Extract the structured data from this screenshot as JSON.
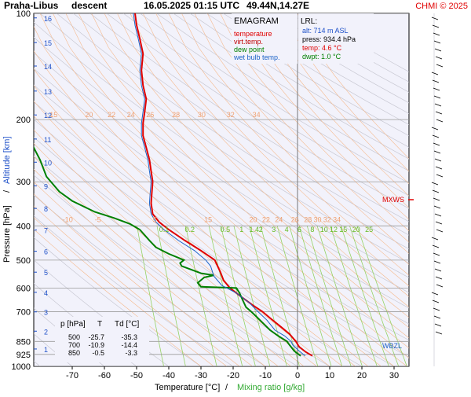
{
  "header": {
    "station": "Praha-Libus",
    "kind": "descent",
    "datetime": "16.05.2025 01:15 UTC",
    "coords": "49.44N,14.27E",
    "copyright": "CHMI © 2025"
  },
  "legend": {
    "title": "EMAGRAM",
    "items": [
      {
        "label": "temperature",
        "color": "#e00000"
      },
      {
        "label": "virt.temp.",
        "color": "#c00000"
      },
      {
        "label": "dew point",
        "color": "#008000"
      },
      {
        "label": "wet bulb temp.",
        "color": "#1e64c8"
      }
    ]
  },
  "lrl": {
    "title": "LRL:",
    "alt": "alt: 714 m ASL",
    "press": "press: 934.4 hPa",
    "temp": "temp: 4.6 °C",
    "dwpt": "dwpt: 1.0 °C"
  },
  "table": {
    "headers": [
      "p [hPa]",
      "T",
      "Td [°C]"
    ],
    "rows": [
      [
        "500",
        "-25.7",
        "-35.3"
      ],
      [
        "700",
        "-10.9",
        "-14.4"
      ],
      [
        "850",
        "-0.5",
        "-3.3"
      ]
    ]
  },
  "markers": {
    "mxws": "MXWS",
    "wbzl": "WBZL"
  },
  "chart_data": {
    "type": "line",
    "title": "EMAGRAM",
    "xlabel": "Temperature [°C]",
    "xlabel2": "Mixing ratio [g/kg]",
    "ylabel": "Pressure [hPa]",
    "ylabel2": "Altitude [km]",
    "xlim": [
      -80,
      40
    ],
    "ylim": [
      1000,
      100
    ],
    "y_scale": "log",
    "x_ticks": [
      -70,
      -60,
      -50,
      -40,
      -30,
      -20,
      -10,
      0,
      10,
      20,
      30
    ],
    "y_ticks": [
      100,
      200,
      300,
      400,
      500,
      600,
      700,
      850,
      925,
      1000
    ],
    "altitude_ticks_km": [
      {
        "km": "1",
        "p": 893
      },
      {
        "km": "2",
        "p": 795
      },
      {
        "km": "3",
        "p": 701
      },
      {
        "km": "4",
        "p": 617
      },
      {
        "km": "5",
        "p": 541
      },
      {
        "km": "6",
        "p": 472
      },
      {
        "km": "7",
        "p": 411
      },
      {
        "km": "8",
        "p": 357
      },
      {
        "km": "9",
        "p": 308
      },
      {
        "km": "10",
        "p": 264
      },
      {
        "km": "11",
        "p": 227
      },
      {
        "km": "12",
        "p": 194
      },
      {
        "km": "13",
        "p": 166
      },
      {
        "km": "14",
        "p": 141
      },
      {
        "km": "15",
        "p": 121
      },
      {
        "km": "16",
        "p": 103
      }
    ],
    "potential_temp_labels_upper": [
      {
        "text": "15",
        "p": 200,
        "t": -77
      },
      {
        "text": "20",
        "p": 200,
        "t": -66
      },
      {
        "text": "22",
        "t": -59,
        "p": 200
      },
      {
        "text": "24",
        "t": -53,
        "p": 200
      },
      {
        "text": "26",
        "t": -47,
        "p": 200
      },
      {
        "text": "28",
        "t": -39,
        "p": 200
      },
      {
        "text": "30",
        "t": -31,
        "p": 200
      },
      {
        "text": "32",
        "t": -22,
        "p": 200
      },
      {
        "text": "34",
        "t": -14,
        "p": 200
      }
    ],
    "potential_temp_labels_lower": [
      {
        "text": "-10",
        "t": -73,
        "p": 384
      },
      {
        "text": "-5",
        "t": -63,
        "p": 384
      },
      {
        "text": "5",
        "t": -45,
        "p": 384
      },
      {
        "text": "15",
        "t": -29,
        "p": 384
      },
      {
        "text": "20",
        "t": -15,
        "p": 384
      },
      {
        "text": "22",
        "t": -11,
        "p": 384
      },
      {
        "text": "24",
        "t": -7,
        "p": 384
      },
      {
        "text": "26",
        "t": -2,
        "p": 384
      },
      {
        "text": "28",
        "t": 2,
        "p": 384
      },
      {
        "text": "30",
        "t": 5,
        "p": 384
      },
      {
        "text": "32",
        "t": 8,
        "p": 384
      },
      {
        "text": "34",
        "t": 11,
        "p": 384
      }
    ],
    "mixing_ratio_labels": [
      {
        "text": "0.1",
        "t": -43,
        "p": 420
      },
      {
        "text": "0.2",
        "t": -35,
        "p": 420
      },
      {
        "text": "0.5",
        "t": -24,
        "p": 420
      },
      {
        "text": "1",
        "t": -18,
        "p": 420
      },
      {
        "text": "1.4",
        "t": -15,
        "p": 420
      },
      {
        "text": "2",
        "t": -12,
        "p": 420
      },
      {
        "text": "3",
        "t": -8,
        "p": 420
      },
      {
        "text": "4",
        "t": -4,
        "p": 420
      },
      {
        "text": "6",
        "t": 0,
        "p": 420
      },
      {
        "text": "8",
        "t": 4,
        "p": 420
      },
      {
        "text": "10",
        "t": 7,
        "p": 420
      },
      {
        "text": "12",
        "t": 10,
        "p": 420
      },
      {
        "text": "15",
        "t": 13,
        "p": 420
      },
      {
        "text": "20",
        "t": 17,
        "p": 420
      },
      {
        "text": "25",
        "t": 21,
        "p": 420
      }
    ],
    "series": [
      {
        "name": "temperature",
        "color": "#e00000",
        "points": [
          [
            4.6,
            934
          ],
          [
            2.5,
            910
          ],
          [
            0.5,
            880
          ],
          [
            -0.5,
            850
          ],
          [
            -2.5,
            810
          ],
          [
            -5,
            775
          ],
          [
            -8.5,
            730
          ],
          [
            -10.9,
            700
          ],
          [
            -14,
            670
          ],
          [
            -18,
            630
          ],
          [
            -21,
            600
          ],
          [
            -23,
            570
          ],
          [
            -24,
            540
          ],
          [
            -25.7,
            500
          ],
          [
            -30,
            470
          ],
          [
            -35,
            440
          ],
          [
            -40,
            410
          ],
          [
            -43,
            390
          ],
          [
            -45,
            370
          ],
          [
            -45.5,
            345
          ],
          [
            -45.3,
            325
          ],
          [
            -45,
            300
          ],
          [
            -45.5,
            280
          ],
          [
            -46,
            260
          ],
          [
            -47,
            240
          ],
          [
            -48,
            222
          ],
          [
            -48,
            205
          ],
          [
            -47.5,
            190
          ],
          [
            -47,
            175
          ],
          [
            -48,
            160
          ],
          [
            -48.5,
            145
          ],
          [
            -48,
            130
          ],
          [
            -49,
            118
          ],
          [
            -50,
            108
          ],
          [
            -50.5,
            100
          ]
        ]
      },
      {
        "name": "dew point",
        "color": "#008000",
        "points": [
          [
            1.0,
            934
          ],
          [
            -1,
            905
          ],
          [
            -2.5,
            870
          ],
          [
            -3.3,
            850
          ],
          [
            -6,
            820
          ],
          [
            -8.5,
            790
          ],
          [
            -11,
            750
          ],
          [
            -13,
            720
          ],
          [
            -14.4,
            700
          ],
          [
            -16,
            680
          ],
          [
            -17,
            650
          ],
          [
            -18,
            620
          ],
          [
            -19,
            600
          ],
          [
            -30,
            595
          ],
          [
            -31,
            580
          ],
          [
            -29,
            560
          ],
          [
            -26,
            552
          ],
          [
            -30,
            545
          ],
          [
            -36,
            520
          ],
          [
            -36.5,
            510
          ],
          [
            -35.3,
            500
          ],
          [
            -40,
            480
          ],
          [
            -44,
            460
          ],
          [
            -46,
            440
          ],
          [
            -49,
            410
          ],
          [
            -52,
            395
          ],
          [
            -57,
            380
          ],
          [
            -63,
            365
          ],
          [
            -70,
            340
          ],
          [
            -74,
            320
          ],
          [
            -78,
            290
          ],
          [
            -80,
            260
          ],
          [
            -83,
            230
          ]
        ]
      },
      {
        "name": "wet bulb temp.",
        "color": "#1e64c8",
        "points": [
          [
            2.4,
            934
          ],
          [
            0.5,
            905
          ],
          [
            -1.5,
            870
          ],
          [
            -2.0,
            850
          ],
          [
            -4,
            820
          ],
          [
            -7,
            790
          ],
          [
            -9.5,
            740
          ],
          [
            -12.3,
            700
          ],
          [
            -15,
            660
          ],
          [
            -19,
            620
          ],
          [
            -23.5,
            590
          ],
          [
            -26,
            555
          ],
          [
            -27,
            520
          ],
          [
            -28.5,
            500
          ],
          [
            -32,
            470
          ],
          [
            -37,
            440
          ],
          [
            -41.5,
            410
          ],
          [
            -44,
            390
          ],
          [
            -45.5,
            370
          ],
          [
            -46,
            345
          ],
          [
            -45.8,
            325
          ],
          [
            -45.5,
            300
          ],
          [
            -46,
            280
          ],
          [
            -46.5,
            260
          ],
          [
            -47.5,
            240
          ],
          [
            -48.5,
            222
          ],
          [
            -48.5,
            205
          ],
          [
            -48,
            190
          ],
          [
            -47.5,
            175
          ],
          [
            -48.5,
            160
          ],
          [
            -49,
            145
          ],
          [
            -48.5,
            130
          ],
          [
            -49.5,
            118
          ],
          [
            -50.5,
            108
          ],
          [
            -51,
            100
          ]
        ]
      }
    ]
  }
}
